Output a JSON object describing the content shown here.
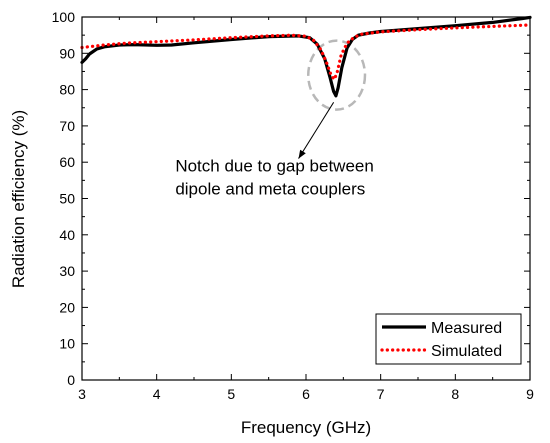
{
  "chart_data": {
    "type": "line",
    "xlabel": "Frequency (GHz)",
    "ylabel": "Radiation efficiency (%)",
    "xlim": [
      3,
      9
    ],
    "ylim": [
      0,
      100
    ],
    "xticks": [
      3,
      4,
      5,
      6,
      7,
      8,
      9
    ],
    "yticks": [
      0,
      10,
      20,
      30,
      40,
      50,
      60,
      70,
      80,
      90,
      100
    ],
    "grid": false,
    "legend_position": "bottom-right",
    "annotation": {
      "lines": [
        "Notch due to gap between",
        "dipole and meta couplers"
      ],
      "text_x": 4.25,
      "text_y": 55,
      "arrow_to": [
        5.9,
        61
      ],
      "arrow_from": [
        6.37,
        76.5
      ],
      "ellipse_center": [
        6.41,
        84
      ],
      "ellipse_rx": 0.38,
      "ellipse_ry": 9.5
    },
    "series": [
      {
        "name": "Measured",
        "style": "solid",
        "color": "#000000",
        "x": [
          3.0,
          3.05,
          3.1,
          3.2,
          3.3,
          3.5,
          3.7,
          4.0,
          4.2,
          4.5,
          5.0,
          5.5,
          5.9,
          6.05,
          6.15,
          6.25,
          6.32,
          6.37,
          6.4,
          6.43,
          6.48,
          6.55,
          6.62,
          6.7,
          6.85,
          7.0,
          7.5,
          8.0,
          8.5,
          8.9,
          9.0
        ],
        "y": [
          87.5,
          88.5,
          89.8,
          91.2,
          91.8,
          92.3,
          92.4,
          92.2,
          92.3,
          92.9,
          93.8,
          94.6,
          94.8,
          94.3,
          92.5,
          88.5,
          83.5,
          79.5,
          78.3,
          80.5,
          86.0,
          91.5,
          93.8,
          95.0,
          95.6,
          96.0,
          96.8,
          97.6,
          98.5,
          99.6,
          99.9
        ]
      },
      {
        "name": "Simulated",
        "style": "dotted",
        "color": "#ff0000",
        "x": [
          3.0,
          3.3,
          3.6,
          4.0,
          4.5,
          5.0,
          5.5,
          5.8,
          6.0,
          6.1,
          6.2,
          6.28,
          6.34,
          6.38,
          6.42,
          6.47,
          6.55,
          6.65,
          6.75,
          7.0,
          7.5,
          8.0,
          8.5,
          9.0
        ],
        "y": [
          91.6,
          92.3,
          92.8,
          93.2,
          93.7,
          94.3,
          94.8,
          95.0,
          94.7,
          93.6,
          91.0,
          87.2,
          83.8,
          82.8,
          85.0,
          89.5,
          92.8,
          94.5,
          95.3,
          95.9,
          96.5,
          97.0,
          97.4,
          97.8
        ]
      }
    ]
  }
}
